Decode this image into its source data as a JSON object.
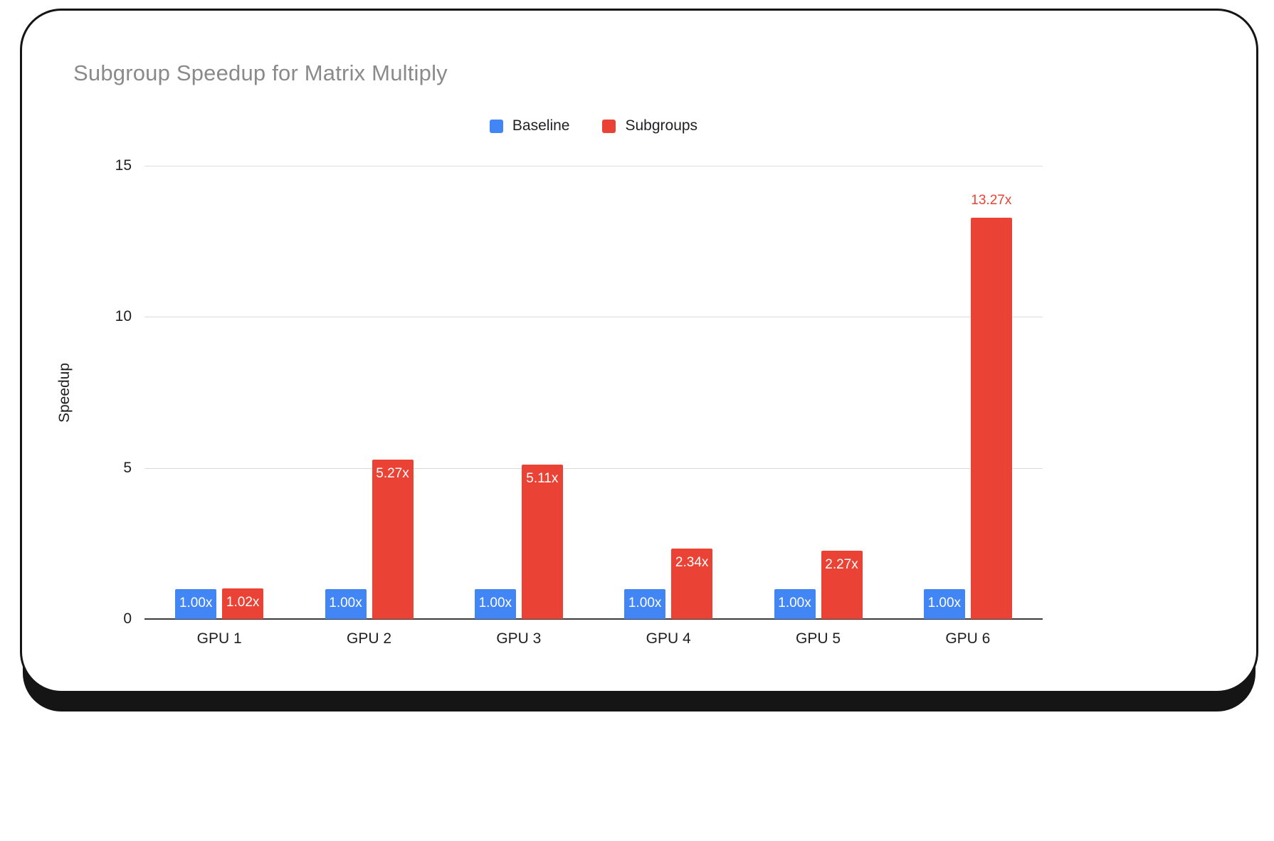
{
  "title": "Subgroup Speedup for Matrix Multiply",
  "colors": {
    "baseline_series": "#4285F4",
    "subgroups_series": "#EA4335",
    "title_text": "#8A8A8A",
    "gridline": "#DADCE0",
    "axis_line": "#3C3C3C",
    "bar_label_inside": "#FFFFFF"
  },
  "chart_data": {
    "type": "bar",
    "title": "Subgroup Speedup for Matrix Multiply",
    "categories": [
      "GPU 1",
      "GPU 2",
      "GPU 3",
      "GPU 4",
      "GPU 5",
      "GPU 6"
    ],
    "series": [
      {
        "name": "Baseline",
        "color": "#4285F4",
        "values": [
          1.0,
          1.0,
          1.0,
          1.0,
          1.0,
          1.0
        ],
        "labels": [
          "1.00x",
          "1.00x",
          "1.00x",
          "1.00x",
          "1.00x",
          "1.00x"
        ],
        "label_positions": [
          "inside",
          "inside",
          "inside",
          "inside",
          "inside",
          "inside"
        ]
      },
      {
        "name": "Subgroups",
        "color": "#EA4335",
        "values": [
          1.02,
          5.27,
          5.11,
          2.34,
          2.27,
          13.27
        ],
        "labels": [
          "1.02x",
          "5.27x",
          "5.11x",
          "2.34x",
          "2.27x",
          "13.27x"
        ],
        "label_positions": [
          "inside",
          "inside",
          "inside",
          "inside",
          "inside",
          "above"
        ]
      }
    ],
    "xlabel": "",
    "ylabel": "Speedup",
    "ylim": [
      0,
      15
    ],
    "yticks": [
      0,
      5,
      10,
      15
    ],
    "grid": true,
    "legend_position": "top"
  }
}
